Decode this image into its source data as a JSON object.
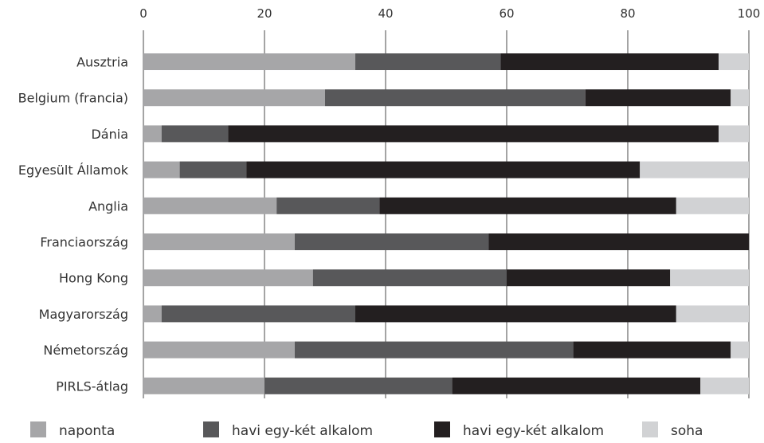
{
  "chart_data": {
    "type": "bar",
    "orientation": "horizontal",
    "stacked": true,
    "title": "",
    "xlabel": "",
    "ylabel": "",
    "xlim": [
      0,
      100
    ],
    "x_ticks": [
      "0",
      "20",
      "40",
      "60",
      "80",
      "100"
    ],
    "x_tick_values": [
      0,
      20,
      40,
      60,
      80,
      100
    ],
    "grid": "vertical",
    "legend_position": "bottom",
    "categories": [
      "Ausztria",
      "Belgium (francia)",
      "Dánia",
      "Egyesült Államok",
      "Anglia",
      "Franciaország",
      "Hong Kong",
      "Magyarország",
      "Németország",
      "PIRLS-átlag"
    ],
    "series": [
      {
        "name": "naponta",
        "color": "#a6a6a8",
        "values": [
          35,
          30,
          3,
          6,
          22,
          25,
          28,
          3,
          25,
          20
        ]
      },
      {
        "name": "havi egy-két alkalom",
        "color": "#58585a",
        "values": [
          24,
          43,
          11,
          11,
          17,
          32,
          32,
          32,
          46,
          31
        ]
      },
      {
        "name": "havi egy-két alkalom",
        "color": "#231f20",
        "values": [
          36,
          24,
          81,
          65,
          49,
          43,
          27,
          53,
          26,
          41
        ]
      },
      {
        "name": "soha",
        "color": "#d1d2d4",
        "values": [
          5,
          3,
          5,
          18,
          12,
          0,
          13,
          12,
          3,
          8
        ]
      }
    ]
  }
}
